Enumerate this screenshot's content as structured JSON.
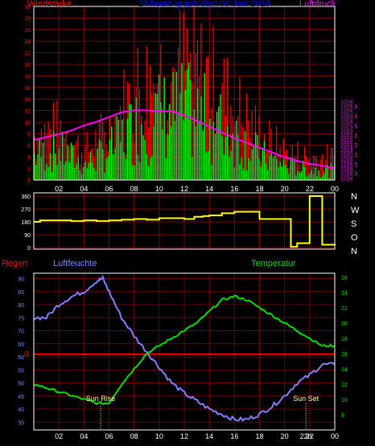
{
  "colors": {
    "wind_gust": "#ff0000",
    "wind_avg": "#00ff00",
    "pressure": "#ff00ff",
    "direction": "#ffff00",
    "humidity": "#8080ff",
    "temperature": "#00dd00",
    "rain": "#ff0000",
    "grid": "#800000",
    "frame": "#ffffff",
    "sun": "#ffff99"
  },
  "header": {
    "left": "Windstärke",
    "center": "24 hours graph day: 09 Juni 2019",
    "right": "Luftdruck"
  },
  "panel2_header": {
    "left": "Regen",
    "humidity": "Luftfeuchte",
    "temperature": "Temperatur"
  },
  "direction_labels": [
    "N",
    "W",
    "S",
    "O",
    "N"
  ],
  "annotations": {
    "sun_rise": "Sun Rise",
    "sun_set": "Sun Set",
    "sun_rise_hour": 5.33,
    "sun_set_hour": 21.7,
    "extra_tick": "22h"
  },
  "chart_data": [
    {
      "type": "bar",
      "name": "wind-and-pressure",
      "x_ticks": [
        "02",
        "04",
        "06",
        "08",
        "10",
        "12",
        "14",
        "16",
        "18",
        "20",
        "22",
        "00"
      ],
      "y_left": {
        "min": 0,
        "max": 30,
        "ticks": [
          0,
          2,
          4,
          6,
          8,
          10,
          12,
          14,
          16,
          18,
          20,
          22,
          24,
          26,
          28,
          30
        ]
      },
      "y_right": {
        "min": 1017.8,
        "max": 1036,
        "ticks": [
          1018,
          1018.5,
          1019,
          1019.5,
          1020,
          1020.5,
          1021,
          1021.5,
          1022,
          1022.5,
          1023,
          1023.5,
          1024,
          1024.5,
          1025,
          1025.5,
          1026
        ]
      },
      "wind_gust_keypoints": [
        [
          0,
          8
        ],
        [
          2,
          9
        ],
        [
          4,
          5
        ],
        [
          6,
          9
        ],
        [
          8,
          16
        ],
        [
          10,
          19
        ],
        [
          12,
          20
        ],
        [
          14,
          18
        ],
        [
          16,
          13
        ],
        [
          18,
          8
        ],
        [
          20,
          5
        ],
        [
          22,
          4
        ],
        [
          24,
          4
        ]
      ],
      "wind_avg_keypoints": [
        [
          0,
          5
        ],
        [
          2,
          6
        ],
        [
          4,
          3
        ],
        [
          6,
          6
        ],
        [
          8,
          11
        ],
        [
          10,
          13
        ],
        [
          12,
          14
        ],
        [
          14,
          12
        ],
        [
          16,
          9
        ],
        [
          18,
          5
        ],
        [
          20,
          3
        ],
        [
          22,
          2
        ],
        [
          24,
          2
        ]
      ],
      "pressure": [
        [
          0,
          1022
        ],
        [
          1,
          1022.3
        ],
        [
          2,
          1022.6
        ],
        [
          3,
          1023
        ],
        [
          4,
          1023.5
        ],
        [
          5,
          1023.9
        ],
        [
          6,
          1024.4
        ],
        [
          7,
          1024.9
        ],
        [
          8,
          1025.1
        ],
        [
          9,
          1025.1
        ],
        [
          10,
          1025.0
        ],
        [
          11,
          1025.0
        ],
        [
          12,
          1024.6
        ],
        [
          13,
          1024.0
        ],
        [
          14,
          1023.4
        ],
        [
          15,
          1022.8
        ],
        [
          16,
          1022.2
        ],
        [
          17,
          1021.7
        ],
        [
          18,
          1021.2
        ],
        [
          19,
          1020.7
        ],
        [
          20,
          1020.2
        ],
        [
          21,
          1019.8
        ],
        [
          22,
          1019.5
        ],
        [
          23,
          1019.3
        ],
        [
          24,
          1019.0
        ]
      ]
    },
    {
      "type": "line",
      "name": "wind-direction",
      "y": {
        "min": 0,
        "max": 360,
        "ticks": [
          0,
          90,
          180,
          270,
          360
        ]
      },
      "direction": [
        [
          0,
          180
        ],
        [
          0.5,
          190
        ],
        [
          2,
          190
        ],
        [
          3,
          185
        ],
        [
          4,
          190
        ],
        [
          5,
          185
        ],
        [
          6,
          190
        ],
        [
          7,
          195
        ],
        [
          8,
          200
        ],
        [
          9,
          195
        ],
        [
          10,
          205
        ],
        [
          11,
          205
        ],
        [
          12,
          200
        ],
        [
          12.8,
          215
        ],
        [
          13.5,
          220
        ],
        [
          14,
          225
        ],
        [
          15,
          240
        ],
        [
          16,
          250
        ],
        [
          17,
          250
        ],
        [
          18,
          200
        ],
        [
          19,
          200
        ],
        [
          20,
          200
        ],
        [
          20.5,
          5
        ],
        [
          21,
          30
        ],
        [
          22,
          360
        ],
        [
          23,
          20
        ],
        [
          24,
          15
        ]
      ]
    },
    {
      "type": "line",
      "name": "humidity-temperature",
      "y_left": {
        "min": 32,
        "max": 92,
        "ticks": [
          35,
          40,
          45,
          50,
          55,
          60,
          65,
          70,
          75,
          80,
          85,
          90
        ]
      },
      "y_right": {
        "min": 6,
        "max": 26.5,
        "ticks": [
          8,
          10,
          12,
          14,
          16,
          18,
          20,
          22,
          24,
          26
        ]
      },
      "rain_label": "0",
      "humidity": [
        [
          0,
          75
        ],
        [
          1,
          75
        ],
        [
          2,
          80
        ],
        [
          3,
          83
        ],
        [
          4,
          85
        ],
        [
          5,
          89
        ],
        [
          5.5,
          90
        ],
        [
          6,
          85
        ],
        [
          7,
          75
        ],
        [
          8,
          68
        ],
        [
          9,
          62
        ],
        [
          10,
          56
        ],
        [
          11,
          50
        ],
        [
          12,
          46
        ],
        [
          13,
          43
        ],
        [
          14,
          40
        ],
        [
          15,
          38
        ],
        [
          16,
          36
        ],
        [
          17,
          36
        ],
        [
          18,
          38
        ],
        [
          19,
          41
        ],
        [
          20,
          45
        ],
        [
          21,
          50
        ],
        [
          22,
          53
        ],
        [
          23,
          57
        ],
        [
          24,
          57
        ]
      ],
      "temperature": [
        [
          0,
          12
        ],
        [
          1,
          11.5
        ],
        [
          2,
          11
        ],
        [
          3,
          10.5
        ],
        [
          4,
          10
        ],
        [
          5,
          9.5
        ],
        [
          6,
          9.5
        ],
        [
          7,
          12
        ],
        [
          8,
          14
        ],
        [
          9,
          16
        ],
        [
          10,
          17
        ],
        [
          11,
          18
        ],
        [
          12,
          19
        ],
        [
          13,
          20
        ],
        [
          14,
          21.5
        ],
        [
          15,
          23
        ],
        [
          16,
          23.5
        ],
        [
          17,
          23
        ],
        [
          18,
          22
        ],
        [
          19,
          21
        ],
        [
          20,
          20
        ],
        [
          21,
          19
        ],
        [
          22,
          18
        ],
        [
          23,
          17
        ],
        [
          24,
          17
        ]
      ]
    }
  ]
}
